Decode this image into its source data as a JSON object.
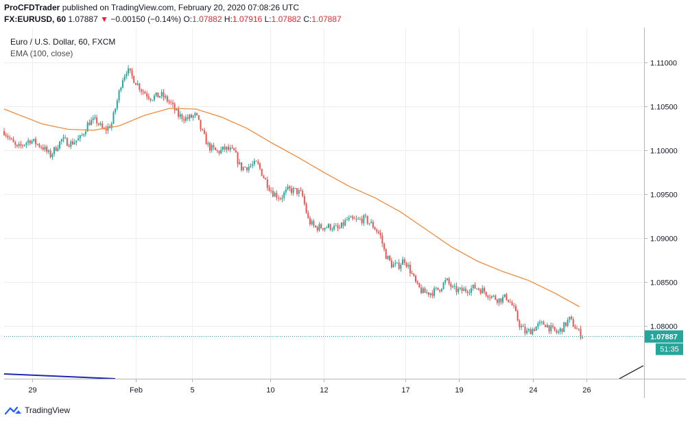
{
  "header": {
    "publisher": "ProCFDTrader",
    "published_text": "published on TradingView.com, February 20, 2020 07:08:26 UTC",
    "symbol": "FX:EURUSD, 60",
    "last": "1.07887",
    "change_arrow": "▼",
    "change": "−0.00150 (−0.14%)",
    "o_label": "O:",
    "o_val": "1.07882",
    "h_label": "H:",
    "h_val": "1.07916",
    "l_label": "L:",
    "l_val": "1.07882",
    "c_label": "C:",
    "c_val": "1.07887"
  },
  "legend": {
    "title": "Euro / U.S. Dollar, 60, FXCM",
    "indicator": "EMA (100, close)"
  },
  "footer": {
    "brand": "TradingView"
  },
  "colors": {
    "up": "#26a69a",
    "down": "#ef5350",
    "ema": "#f08a3a",
    "grid": "#edeef2",
    "price_line": "#26a69a",
    "price_label_bg": "#26a69a",
    "trendline_blue": "#1d27b5",
    "trendline_dark": "#333333"
  },
  "chart_data": {
    "type": "candlestick",
    "x_tick_labels": [
      "29",
      "Feb",
      "5",
      "10",
      "12",
      "17",
      "19",
      "24",
      "26"
    ],
    "y_tick_labels": [
      "1.11000",
      "1.10500",
      "1.10000",
      "1.09500",
      "1.09000",
      "1.08500",
      "1.08000"
    ],
    "ylim": [
      1.074,
      1.114
    ],
    "last_price_label": "1.07887",
    "countdown_label": "51:35",
    "close_path": [
      {
        "x": 0.0,
        "y": 1.1022
      },
      {
        "x": 1.0,
        "y": 1.1002
      },
      {
        "x": 2.0,
        "y": 1.1012
      },
      {
        "x": 2.5,
        "y": 1.1008
      },
      {
        "x": 3.0,
        "y": 1.1004
      },
      {
        "x": 3.6,
        "y": 1.0994
      },
      {
        "x": 4.5,
        "y": 1.1012
      },
      {
        "x": 5.2,
        "y": 1.1008
      },
      {
        "x": 6.0,
        "y": 1.1014
      },
      {
        "x": 6.6,
        "y": 1.1032
      },
      {
        "x": 7.2,
        "y": 1.1034
      },
      {
        "x": 7.8,
        "y": 1.1022
      },
      {
        "x": 8.4,
        "y": 1.103
      },
      {
        "x": 8.9,
        "y": 1.106
      },
      {
        "x": 9.2,
        "y": 1.108
      },
      {
        "x": 9.6,
        "y": 1.1092
      },
      {
        "x": 10.2,
        "y": 1.108
      },
      {
        "x": 10.8,
        "y": 1.1068
      },
      {
        "x": 11.5,
        "y": 1.106
      },
      {
        "x": 12.3,
        "y": 1.1063
      },
      {
        "x": 13.0,
        "y": 1.1054
      },
      {
        "x": 13.6,
        "y": 1.104
      },
      {
        "x": 14.3,
        "y": 1.1036
      },
      {
        "x": 15.0,
        "y": 1.104
      },
      {
        "x": 15.5,
        "y": 1.102
      },
      {
        "x": 16.0,
        "y": 1.1004
      },
      {
        "x": 16.7,
        "y": 1.0998
      },
      {
        "x": 17.3,
        "y": 1.1002
      },
      {
        "x": 18.0,
        "y": 1.0998
      },
      {
        "x": 18.5,
        "y": 1.098
      },
      {
        "x": 19.2,
        "y": 1.0982
      },
      {
        "x": 19.8,
        "y": 1.0985
      },
      {
        "x": 20.5,
        "y": 1.0964
      },
      {
        "x": 21.0,
        "y": 1.0952
      },
      {
        "x": 21.6,
        "y": 1.0946
      },
      {
        "x": 22.2,
        "y": 1.0955
      },
      {
        "x": 22.8,
        "y": 1.0954
      },
      {
        "x": 23.3,
        "y": 1.095
      },
      {
        "x": 23.8,
        "y": 1.092
      },
      {
        "x": 24.3,
        "y": 1.0912
      },
      {
        "x": 25.0,
        "y": 1.0913
      },
      {
        "x": 25.6,
        "y": 1.0913
      },
      {
        "x": 26.2,
        "y": 1.091
      },
      {
        "x": 26.8,
        "y": 1.0921
      },
      {
        "x": 27.5,
        "y": 1.092
      },
      {
        "x": 28.2,
        "y": 1.0922
      },
      {
        "x": 28.8,
        "y": 1.0915
      },
      {
        "x": 29.4,
        "y": 1.0904
      },
      {
        "x": 29.8,
        "y": 1.0882
      },
      {
        "x": 30.3,
        "y": 1.087
      },
      {
        "x": 30.8,
        "y": 1.0868
      },
      {
        "x": 31.3,
        "y": 1.0876
      },
      {
        "x": 31.8,
        "y": 1.0862
      },
      {
        "x": 32.3,
        "y": 1.0845
      },
      {
        "x": 32.8,
        "y": 1.0838
      },
      {
        "x": 33.4,
        "y": 1.0838
      },
      {
        "x": 34.0,
        "y": 1.0842
      },
      {
        "x": 34.6,
        "y": 1.0852
      },
      {
        "x": 35.1,
        "y": 1.0842
      },
      {
        "x": 35.7,
        "y": 1.084
      },
      {
        "x": 36.3,
        "y": 1.0842
      },
      {
        "x": 36.9,
        "y": 1.0844
      },
      {
        "x": 37.5,
        "y": 1.084
      },
      {
        "x": 38.1,
        "y": 1.0834
      },
      {
        "x": 38.7,
        "y": 1.083
      },
      {
        "x": 39.3,
        "y": 1.0833
      },
      {
        "x": 39.8,
        "y": 1.0822
      },
      {
        "x": 40.3,
        "y": 1.0802
      },
      {
        "x": 40.8,
        "y": 1.0792
      },
      {
        "x": 41.3,
        "y": 1.0796
      },
      {
        "x": 41.8,
        "y": 1.0801
      },
      {
        "x": 42.3,
        "y": 1.0803
      },
      {
        "x": 42.8,
        "y": 1.0796
      },
      {
        "x": 43.3,
        "y": 1.0792
      },
      {
        "x": 43.8,
        "y": 1.08
      },
      {
        "x": 44.2,
        "y": 1.0808
      },
      {
        "x": 44.6,
        "y": 1.08
      },
      {
        "x": 45.0,
        "y": 1.0792
      },
      {
        "x": 45.3,
        "y": 1.07887
      }
    ],
    "ema": [
      {
        "x": 0.0,
        "y": 1.1047
      },
      {
        "x": 3.0,
        "y": 1.103
      },
      {
        "x": 5.0,
        "y": 1.1024
      },
      {
        "x": 7.0,
        "y": 1.1023
      },
      {
        "x": 9.0,
        "y": 1.1028
      },
      {
        "x": 11.0,
        "y": 1.104
      },
      {
        "x": 13.0,
        "y": 1.1048
      },
      {
        "x": 15.0,
        "y": 1.1047
      },
      {
        "x": 17.0,
        "y": 1.1038
      },
      {
        "x": 19.0,
        "y": 1.1025
      },
      {
        "x": 21.0,
        "y": 1.1008
      },
      {
        "x": 23.0,
        "y": 1.0992
      },
      {
        "x": 25.0,
        "y": 1.0975
      },
      {
        "x": 27.0,
        "y": 1.0959
      },
      {
        "x": 29.0,
        "y": 1.0946
      },
      {
        "x": 31.0,
        "y": 1.093
      },
      {
        "x": 33.0,
        "y": 1.091
      },
      {
        "x": 35.0,
        "y": 1.089
      },
      {
        "x": 37.0,
        "y": 1.0874
      },
      {
        "x": 39.0,
        "y": 1.0862
      },
      {
        "x": 41.0,
        "y": 1.0852
      },
      {
        "x": 43.0,
        "y": 1.0838
      },
      {
        "x": 45.0,
        "y": 1.0822
      }
    ]
  }
}
